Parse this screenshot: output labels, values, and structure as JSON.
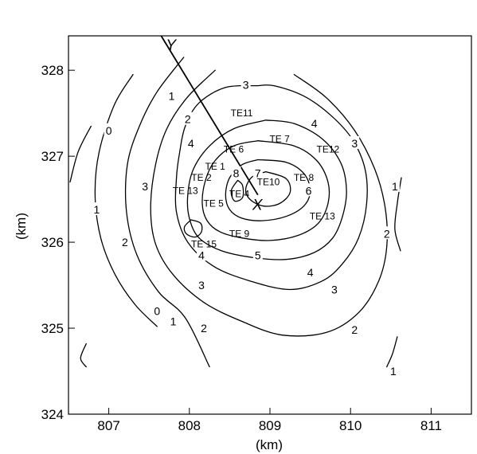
{
  "chart_data": {
    "type": "contour",
    "xlabel": "(km)",
    "ylabel": "(km)",
    "xlim": [
      806.5,
      811.5
    ],
    "ylim": [
      324,
      328.4
    ],
    "x_ticks": [
      807,
      808,
      809,
      810,
      811
    ],
    "y_ticks": [
      324,
      325,
      326,
      327,
      328
    ],
    "x_tick_labels": [
      "807",
      "808",
      "809",
      "810",
      "811"
    ],
    "y_tick_labels": [
      "324",
      "325",
      "326",
      "327",
      "328"
    ],
    "grid": false,
    "profile_line": {
      "start": {
        "label": "Y",
        "x": 807.65,
        "y": 328.4
      },
      "end": {
        "label": "X",
        "x": 808.85,
        "y": 326.55
      }
    },
    "contours": [
      {
        "level": "1",
        "points": [
          [
            806.78,
            327.35
          ],
          [
            806.62,
            327.05
          ],
          [
            806.52,
            326.7
          ]
        ]
      },
      {
        "level": "0",
        "points": [
          [
            807.3,
            327.95
          ],
          [
            807.07,
            327.6
          ],
          [
            806.88,
            327.05
          ],
          [
            806.83,
            326.55
          ],
          [
            806.9,
            326.05
          ],
          [
            807.08,
            325.62
          ],
          [
            807.33,
            325.27
          ],
          [
            807.6,
            325.02
          ]
        ]
      },
      {
        "level": "1",
        "points": [
          [
            807.93,
            328.15
          ],
          [
            807.6,
            327.75
          ],
          [
            807.38,
            327.35
          ],
          [
            807.23,
            326.9
          ],
          [
            807.22,
            326.35
          ],
          [
            807.35,
            325.85
          ],
          [
            807.62,
            325.42
          ],
          [
            807.95,
            325.12
          ],
          [
            808.25,
            324.55
          ]
        ]
      },
      {
        "level": "2",
        "points": [
          [
            808.32,
            328.0
          ],
          [
            807.97,
            327.68
          ],
          [
            807.72,
            327.32
          ],
          [
            807.58,
            326.9
          ],
          [
            807.52,
            326.4
          ],
          [
            807.58,
            325.98
          ],
          [
            807.8,
            325.62
          ],
          [
            808.18,
            325.3
          ],
          [
            808.65,
            325.08
          ],
          [
            809.15,
            324.92
          ],
          [
            809.7,
            324.95
          ],
          [
            810.1,
            325.18
          ],
          [
            810.35,
            325.55
          ],
          [
            810.45,
            325.95
          ],
          [
            810.43,
            326.4
          ],
          [
            810.3,
            326.85
          ],
          [
            810.05,
            327.3
          ],
          [
            809.7,
            327.68
          ],
          [
            809.3,
            327.95
          ]
        ]
      },
      {
        "level": "3",
        "points": [
          [
            808.85,
            327.82
          ],
          [
            808.45,
            327.8
          ],
          [
            808.12,
            327.62
          ],
          [
            807.95,
            327.35
          ],
          [
            807.88,
            327.05
          ],
          [
            807.84,
            326.75
          ],
          [
            807.84,
            326.35
          ],
          [
            807.98,
            326.0
          ],
          [
            808.3,
            325.72
          ],
          [
            808.75,
            325.55
          ],
          [
            809.25,
            325.45
          ],
          [
            809.65,
            325.55
          ],
          [
            809.9,
            325.75
          ],
          [
            810.1,
            326.05
          ],
          [
            810.2,
            326.45
          ],
          [
            810.18,
            326.85
          ],
          [
            810.02,
            327.2
          ],
          [
            809.75,
            327.48
          ],
          [
            809.42,
            327.7
          ],
          [
            809.05,
            327.82
          ],
          [
            808.85,
            327.82
          ]
        ]
      },
      {
        "level": "4",
        "points": [
          [
            808.95,
            327.42
          ],
          [
            808.55,
            327.32
          ],
          [
            808.25,
            327.12
          ],
          [
            808.05,
            326.85
          ],
          [
            807.98,
            326.55
          ],
          [
            808.0,
            326.28
          ],
          [
            808.12,
            326.05
          ],
          [
            808.4,
            325.9
          ],
          [
            808.8,
            325.82
          ],
          [
            809.2,
            325.8
          ],
          [
            809.55,
            325.88
          ],
          [
            809.78,
            326.05
          ],
          [
            809.9,
            326.3
          ],
          [
            809.95,
            326.6
          ],
          [
            809.88,
            326.92
          ],
          [
            809.65,
            327.2
          ],
          [
            809.3,
            327.38
          ],
          [
            808.95,
            327.42
          ]
        ]
      },
      {
        "level": "5",
        "points": [
          [
            808.85,
            327.18
          ],
          [
            808.55,
            327.12
          ],
          [
            808.32,
            326.95
          ],
          [
            808.2,
            326.72
          ],
          [
            808.16,
            326.45
          ],
          [
            808.22,
            326.25
          ],
          [
            808.38,
            326.12
          ],
          [
            808.65,
            326.05
          ],
          [
            809.0,
            326.02
          ],
          [
            809.35,
            326.08
          ],
          [
            809.6,
            326.22
          ],
          [
            809.72,
            326.45
          ],
          [
            809.72,
            326.7
          ],
          [
            809.58,
            326.95
          ],
          [
            809.3,
            327.12
          ],
          [
            808.85,
            327.18
          ]
        ]
      },
      {
        "level": "6",
        "points": [
          [
            808.85,
            326.96
          ],
          [
            808.65,
            326.9
          ],
          [
            808.5,
            326.75
          ],
          [
            808.45,
            326.55
          ],
          [
            808.5,
            326.38
          ],
          [
            808.65,
            326.28
          ],
          [
            808.9,
            326.25
          ],
          [
            809.2,
            326.3
          ],
          [
            809.42,
            326.42
          ],
          [
            809.5,
            326.6
          ],
          [
            809.42,
            326.8
          ],
          [
            809.2,
            326.93
          ],
          [
            808.85,
            326.96
          ]
        ]
      },
      {
        "level": "7",
        "points": [
          [
            808.95,
            326.82
          ],
          [
            808.78,
            326.76
          ],
          [
            808.7,
            326.62
          ],
          [
            808.75,
            326.5
          ],
          [
            808.92,
            326.42
          ],
          [
            809.12,
            326.45
          ],
          [
            809.25,
            326.58
          ],
          [
            809.2,
            326.74
          ],
          [
            808.95,
            326.82
          ]
        ]
      },
      {
        "level": "8",
        "points": [
          [
            808.6,
            326.72
          ],
          [
            808.52,
            326.6
          ],
          [
            808.56,
            326.48
          ],
          [
            808.66,
            326.52
          ],
          [
            808.66,
            326.66
          ],
          [
            808.6,
            326.72
          ]
        ]
      },
      {
        "level": "",
        "points": [
          [
            808.02,
            326.26
          ],
          [
            807.94,
            326.18
          ],
          [
            807.96,
            326.1
          ],
          [
            808.07,
            326.06
          ],
          [
            808.15,
            326.12
          ],
          [
            808.14,
            326.22
          ],
          [
            808.02,
            326.26
          ]
        ]
      },
      {
        "level": "1",
        "points": [
          [
            810.63,
            326.75
          ],
          [
            810.58,
            326.45
          ],
          [
            810.55,
            326.15
          ],
          [
            810.62,
            325.9
          ]
        ]
      },
      {
        "level": "1",
        "points": [
          [
            810.58,
            324.9
          ],
          [
            810.52,
            324.7
          ],
          [
            810.45,
            324.55
          ]
        ]
      },
      {
        "level": "1",
        "points": [
          [
            806.72,
            324.82
          ],
          [
            806.65,
            324.65
          ],
          [
            806.72,
            324.55
          ]
        ]
      }
    ],
    "contour_labels": [
      {
        "text": "3",
        "x": 808.7,
        "y": 327.83
      },
      {
        "text": "1",
        "x": 807.78,
        "y": 327.7
      },
      {
        "text": "2",
        "x": 807.98,
        "y": 327.43
      },
      {
        "text": "0",
        "x": 807.0,
        "y": 327.3
      },
      {
        "text": "4",
        "x": 808.02,
        "y": 327.15
      },
      {
        "text": "3",
        "x": 807.45,
        "y": 326.65
      },
      {
        "text": "1",
        "x": 806.85,
        "y": 326.38
      },
      {
        "text": "2",
        "x": 807.2,
        "y": 326.0
      },
      {
        "text": "4",
        "x": 808.15,
        "y": 325.85
      },
      {
        "text": "5",
        "x": 808.85,
        "y": 325.85
      },
      {
        "text": "3",
        "x": 808.15,
        "y": 325.5
      },
      {
        "text": "4",
        "x": 809.5,
        "y": 325.65
      },
      {
        "text": "3",
        "x": 809.8,
        "y": 325.45
      },
      {
        "text": "0",
        "x": 807.6,
        "y": 325.2
      },
      {
        "text": "1",
        "x": 807.8,
        "y": 325.08
      },
      {
        "text": "2",
        "x": 808.18,
        "y": 325.0
      },
      {
        "text": "2",
        "x": 810.05,
        "y": 324.98
      },
      {
        "text": "1",
        "x": 810.53,
        "y": 324.5
      },
      {
        "text": "2",
        "x": 810.45,
        "y": 326.1
      },
      {
        "text": "1",
        "x": 810.55,
        "y": 326.65
      },
      {
        "text": "3",
        "x": 810.05,
        "y": 327.15
      },
      {
        "text": "4",
        "x": 809.55,
        "y": 327.38
      },
      {
        "text": "7",
        "x": 808.85,
        "y": 326.8
      },
      {
        "text": "8",
        "x": 808.58,
        "y": 326.8
      },
      {
        "text": "6",
        "x": 809.48,
        "y": 326.6
      }
    ],
    "stations": [
      {
        "name": "TE11",
        "x": 808.65,
        "y": 327.5
      },
      {
        "name": "TE 7",
        "x": 809.12,
        "y": 327.2
      },
      {
        "name": "TE 6",
        "x": 808.55,
        "y": 327.08
      },
      {
        "name": "TE12",
        "x": 809.72,
        "y": 327.08
      },
      {
        "name": "TE 1",
        "x": 808.32,
        "y": 326.88
      },
      {
        "name": "TE 2",
        "x": 808.15,
        "y": 326.75
      },
      {
        "name": "TE10",
        "x": 808.98,
        "y": 326.7
      },
      {
        "name": "TE 8",
        "x": 809.42,
        "y": 326.75
      },
      {
        "name": "TE 13",
        "x": 807.95,
        "y": 326.6
      },
      {
        "name": "TE 4",
        "x": 808.62,
        "y": 326.56
      },
      {
        "name": "TE 5",
        "x": 808.3,
        "y": 326.45
      },
      {
        "name": "TE 13",
        "x": 809.65,
        "y": 326.3
      },
      {
        "name": "TE 9",
        "x": 808.62,
        "y": 326.1
      },
      {
        "name": "TE 15",
        "x": 808.18,
        "y": 325.98
      }
    ]
  }
}
